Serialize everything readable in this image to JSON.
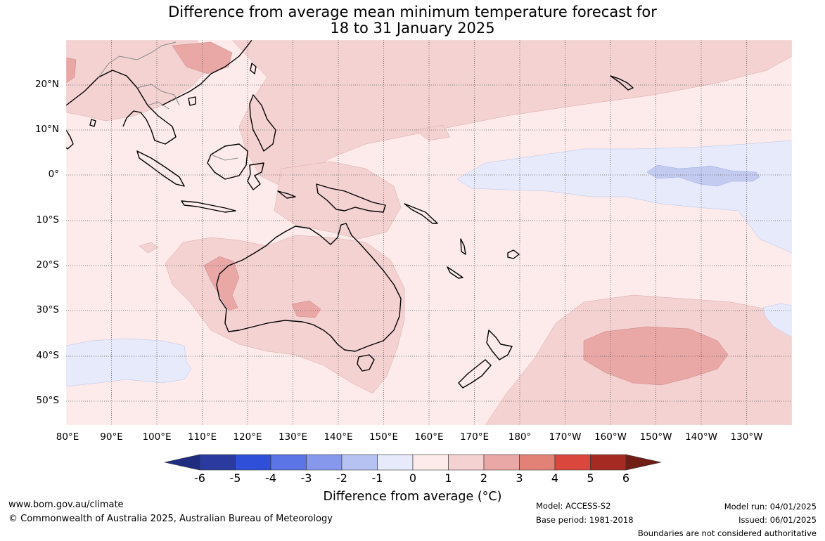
{
  "title_line1": "Difference from average mean minimum temperature forecast for",
  "title_line2": "18 to 31 January 2025",
  "lat_labels": [
    "20°N",
    "10°N",
    "0°",
    "10°S",
    "20°S",
    "30°S",
    "40°S",
    "50°S"
  ],
  "lon_labels": [
    "80°E",
    "90°E",
    "100°E",
    "110°E",
    "120°E",
    "130°E",
    "140°E",
    "150°E",
    "160°E",
    "170°E",
    "180°",
    "170°W",
    "160°W",
    "150°W",
    "140°W",
    "130°W"
  ],
  "colorbar": {
    "title": "Difference from average (°C)",
    "ticks": [
      "-6",
      "-5",
      "-4",
      "-3",
      "-2",
      "-1",
      "0",
      "1",
      "2",
      "3",
      "4",
      "5",
      "6"
    ],
    "colors": [
      "#2a3a9e",
      "#2f4fd8",
      "#5b74e6",
      "#8698ec",
      "#b6c2f2",
      "#e6eafb",
      "#fcebea",
      "#f4d2d2",
      "#e9a8a6",
      "#e28176",
      "#d9473d",
      "#a52a22"
    ],
    "low_extend_color": "#1f2c80",
    "high_extend_color": "#701d16"
  },
  "footer": {
    "website": "www.bom.gov.au/climate",
    "copyright": "© Commonwealth of Australia 2025, Australian Bureau of Meteorology",
    "model": "Model: ACCESS-S2",
    "base_period": "Base period: 1981-2018",
    "model_run": "Model run: 04/01/2025",
    "issued": "Issued: 06/01/2025",
    "disclaimer": "Boundaries are not considered authoritative"
  },
  "map_colors": {
    "land_outline": "#000000",
    "grid": "#555555",
    "border": "#888888"
  }
}
